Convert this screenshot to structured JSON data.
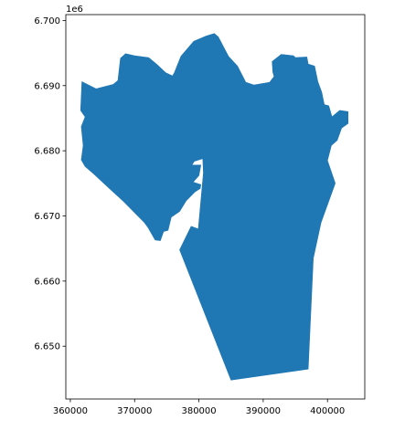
{
  "chart_data": {
    "type": "map",
    "title": "",
    "xlabel": "",
    "ylabel": "",
    "offset_label": "1e6",
    "x_ticks": [
      {
        "value": 360000,
        "label": "360000"
      },
      {
        "value": 370000,
        "label": "370000"
      },
      {
        "value": 380000,
        "label": "380000"
      },
      {
        "value": 390000,
        "label": "390000"
      },
      {
        "value": 400000,
        "label": "400000"
      }
    ],
    "y_ticks": [
      {
        "value": 6650000,
        "label": "6.650"
      },
      {
        "value": 6660000,
        "label": "6.660"
      },
      {
        "value": 6670000,
        "label": "6.670"
      },
      {
        "value": 6680000,
        "label": "6.680"
      },
      {
        "value": 6690000,
        "label": "6.690"
      },
      {
        "value": 6700000,
        "label": "6.700"
      }
    ],
    "xlim": [
      359300,
      405800
    ],
    "ylim": [
      6641900,
      6700900
    ],
    "fill_color": "#1f77b4",
    "region": [
      [
        385000,
        6644800
      ],
      [
        397000,
        6646500
      ],
      [
        397800,
        6663500
      ],
      [
        399000,
        6669000
      ],
      [
        401200,
        6675000
      ],
      [
        400000,
        6678500
      ],
      [
        400600,
        6680800
      ],
      [
        401500,
        6681600
      ],
      [
        402200,
        6683500
      ],
      [
        403200,
        6684200
      ],
      [
        403200,
        6686000
      ],
      [
        401900,
        6686200
      ],
      [
        400700,
        6685200
      ],
      [
        400200,
        6686900
      ],
      [
        399500,
        6687100
      ],
      [
        399100,
        6689000
      ],
      [
        398500,
        6690600
      ],
      [
        398000,
        6693000
      ],
      [
        397000,
        6693300
      ],
      [
        396800,
        6694400
      ],
      [
        395000,
        6694300
      ],
      [
        394700,
        6694600
      ],
      [
        392800,
        6694800
      ],
      [
        391400,
        6693700
      ],
      [
        391500,
        6692100
      ],
      [
        391700,
        6691400
      ],
      [
        391000,
        6690500
      ],
      [
        388600,
        6690100
      ],
      [
        387300,
        6690500
      ],
      [
        386000,
        6693000
      ],
      [
        384600,
        6694500
      ],
      [
        383000,
        6697500
      ],
      [
        382400,
        6698000
      ],
      [
        381100,
        6697600
      ],
      [
        379200,
        6696800
      ],
      [
        377200,
        6694500
      ],
      [
        376200,
        6692000
      ],
      [
        375900,
        6691500
      ],
      [
        374800,
        6692000
      ],
      [
        373500,
        6693200
      ],
      [
        372200,
        6694300
      ],
      [
        370000,
        6694600
      ],
      [
        368600,
        6694900
      ],
      [
        367800,
        6694200
      ],
      [
        367400,
        6690800
      ],
      [
        366700,
        6690200
      ],
      [
        364000,
        6689500
      ],
      [
        361800,
        6690600
      ],
      [
        361600,
        6686200
      ],
      [
        362300,
        6685200
      ],
      [
        361700,
        6683700
      ],
      [
        362000,
        6680800
      ],
      [
        361700,
        6678600
      ],
      [
        362300,
        6677600
      ],
      [
        363700,
        6676400
      ],
      [
        366100,
        6674200
      ],
      [
        368300,
        6672200
      ],
      [
        370100,
        6670400
      ],
      [
        371500,
        6669000
      ],
      [
        372100,
        6668200
      ],
      [
        373200,
        6666300
      ],
      [
        374000,
        6666200
      ],
      [
        374500,
        6667600
      ],
      [
        375200,
        6667800
      ],
      [
        375700,
        6669800
      ],
      [
        377000,
        6670700
      ],
      [
        378000,
        6672300
      ],
      [
        379400,
        6673700
      ],
      [
        380200,
        6674200
      ],
      [
        380300,
        6674800
      ],
      [
        379100,
        6675200
      ],
      [
        380000,
        6676200
      ],
      [
        380300,
        6677800
      ],
      [
        378900,
        6677800
      ],
      [
        379300,
        6678400
      ],
      [
        380600,
        6678800
      ],
      [
        380700,
        6676600
      ],
      [
        379900,
        6668000
      ],
      [
        378800,
        6668400
      ],
      [
        377000,
        6664800
      ]
    ]
  }
}
